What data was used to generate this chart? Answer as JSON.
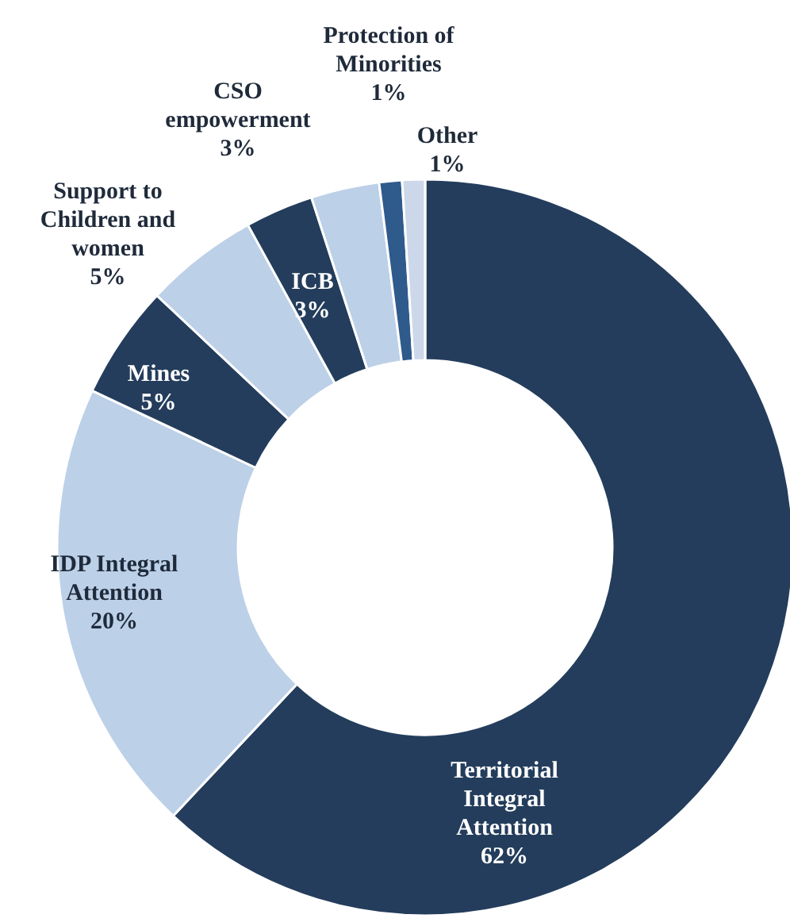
{
  "chart_data": {
    "type": "donut",
    "categories": [
      "Territorial Integral Attention",
      "IDP Integral Attention",
      "Mines",
      "Support to Children and women",
      "ICB",
      "CSO empowerment",
      "Protection of Minorities",
      "Other"
    ],
    "values": [
      62,
      20,
      5,
      5,
      3,
      3,
      1,
      1
    ],
    "colors": [
      "#243d5c",
      "#bcd0e8",
      "#243d5c",
      "#bcd0e8",
      "#243d5c",
      "#bcd0e8",
      "#2f5a8c",
      "#ccd8ea"
    ],
    "value_labels": [
      "62%",
      "20%",
      "5%",
      "5%",
      "3%",
      "3%",
      "1%",
      "1%"
    ]
  }
}
